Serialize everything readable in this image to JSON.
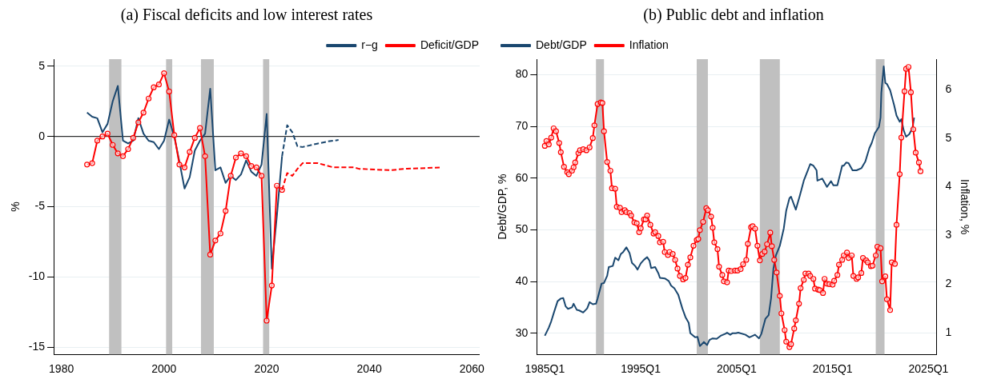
{
  "chart_data": [
    {
      "type": "line",
      "title": "(a) Fiscal deficits and low interest rates",
      "ylabel": "%",
      "xlim": [
        1978.5,
        2061.5
      ],
      "xticks": [
        1980,
        2000,
        2020,
        2040,
        2060
      ],
      "ylim": [
        -15.5,
        5.5
      ],
      "yticks": [
        -15,
        -10,
        -5,
        0,
        5
      ],
      "grid": "y",
      "legend": "top right",
      "ref_lines": [
        {
          "axis": "y",
          "value": 0,
          "color": "#000000"
        }
      ],
      "bands": [
        {
          "axis": "x",
          "from": 1989.3,
          "to": 1991.7,
          "color": "#c0c0c0"
        },
        {
          "axis": "x",
          "from": 2000.4,
          "to": 2001.6,
          "color": "#c0c0c0"
        },
        {
          "axis": "x",
          "from": 2007.2,
          "to": 2009.7,
          "color": "#c0c0c0"
        },
        {
          "axis": "x",
          "from": 2019.3,
          "to": 2020.5,
          "color": "#c0c0c0"
        }
      ],
      "series": [
        {
          "name": "r−g",
          "color": "#1a476f",
          "marker": "none",
          "x": [
            1985,
            1986,
            1987,
            1988,
            1989,
            1990,
            1991,
            1992,
            1993,
            1994,
            1995,
            1996,
            1997,
            1998,
            1999,
            2000,
            2001,
            2002,
            2003,
            2004,
            2005,
            2006,
            2007,
            2008,
            2009,
            2010,
            2011,
            2012,
            2013,
            2014,
            2015,
            2016,
            2017,
            2018,
            2019,
            2020,
            2021,
            2022,
            2023
          ],
          "values": [
            1.7,
            1.4,
            1.3,
            0.3,
            0.9,
            2.5,
            3.6,
            -0.3,
            -0.5,
            -0.3,
            1.3,
            0.2,
            -0.3,
            -0.4,
            -0.9,
            -0.3,
            1.2,
            0.0,
            -1.8,
            -3.7,
            -2.9,
            -1.0,
            -0.3,
            0.2,
            3.4,
            -2.4,
            -2.2,
            -3.3,
            -2.8,
            -3.1,
            -2.7,
            -1.7,
            -2.5,
            -2.8,
            -2.0,
            1.6,
            -9.4,
            -5.6,
            -1.4
          ]
        },
        {
          "name": "Deficit/GDP",
          "color": "#ff0000",
          "marker": "circle",
          "x": [
            1985,
            1986,
            1987,
            1988,
            1989,
            1990,
            1991,
            1992,
            1993,
            1994,
            1995,
            1996,
            1997,
            1998,
            1999,
            2000,
            2001,
            2002,
            2003,
            2004,
            2005,
            2006,
            2007,
            2008,
            2009,
            2010,
            2011,
            2012,
            2013,
            2014,
            2015,
            2016,
            2017,
            2018,
            2019,
            2020,
            2021,
            2022,
            2023
          ],
          "values": [
            -2.0,
            -1.9,
            -0.3,
            0.0,
            0.2,
            -0.6,
            -1.2,
            -1.4,
            -0.9,
            -0.1,
            1.0,
            1.7,
            2.7,
            3.5,
            3.7,
            4.5,
            3.2,
            0.1,
            -2.0,
            -2.2,
            -1.1,
            -0.1,
            0.6,
            -1.4,
            -8.4,
            -7.4,
            -6.9,
            -5.3,
            -2.8,
            -1.5,
            -1.2,
            -1.4,
            -2.1,
            -2.2,
            -2.8,
            -13.1,
            -10.6,
            -3.5,
            -3.8
          ]
        },
        {
          "color": "#1a476f",
          "marker": "none",
          "line_style": "dashed",
          "x": [
            2023,
            2024,
            2025,
            2026,
            2027,
            2030,
            2032,
            2034
          ],
          "values": [
            -1.4,
            0.8,
            0.3,
            -0.7,
            -0.75,
            -0.5,
            -0.35,
            -0.25
          ]
        },
        {
          "color": "#ff0000",
          "marker": "none",
          "line_style": "dashed",
          "x": [
            2023,
            2024,
            2025,
            2026,
            2027,
            2030,
            2033,
            2037,
            2038,
            2044,
            2047,
            2054
          ],
          "values": [
            -3.8,
            -2.6,
            -2.8,
            -2.3,
            -1.9,
            -1.9,
            -2.2,
            -2.2,
            -2.3,
            -2.4,
            -2.3,
            -2.2
          ]
        }
      ]
    },
    {
      "type": "line",
      "title": "(b) Public debt and inflation",
      "ylabel": "Debt/GDP, %",
      "y2label": "Inflation, %",
      "xlim": [
        "1984-03",
        "2025-11"
      ],
      "xticks": [
        {
          "value": "1985-01",
          "label": "1985Q1"
        },
        {
          "value": "1995-01",
          "label": "1995Q1"
        },
        {
          "value": "2005-01",
          "label": "2005Q1"
        },
        {
          "value": "2015-01",
          "label": "2015Q1"
        },
        {
          "value": "2025-01",
          "label": "2025Q1"
        }
      ],
      "ylim": [
        25.9,
        83
      ],
      "yticks": [
        30,
        40,
        50,
        60,
        70,
        80
      ],
      "y2lim": [
        0.56,
        6.62
      ],
      "y2ticks": [
        1,
        2,
        3,
        4,
        5,
        6
      ],
      "grid": "y",
      "legend": "top left",
      "bands": [
        {
          "axis": "x",
          "from": "1990-05",
          "to": "1991-03",
          "color": "#c0c0c0"
        },
        {
          "axis": "x",
          "from": "2000-11",
          "to": "2002-01",
          "color": "#c0c0c0"
        },
        {
          "axis": "x",
          "from": "2007-06",
          "to": "2009-07",
          "color": "#c0c0c0"
        },
        {
          "axis": "x",
          "from": "2019-07",
          "to": "2020-06",
          "color": "#c0c0c0"
        }
      ],
      "series": [
        {
          "name": "Debt/GDP",
          "color": "#1a476f",
          "marker": "none",
          "x": [
            "1985-01",
            "1985-06",
            "1985-09",
            "1986-01",
            "1986-05",
            "1986-09",
            "1986-12",
            "1987-03",
            "1987-06",
            "1987-11",
            "1988-01",
            "1988-05",
            "1988-08",
            "1989-01",
            "1989-06",
            "1989-09",
            "1990-01",
            "1990-05",
            "1990-07",
            "1990-12",
            "1991-03",
            "1991-07",
            "1991-09",
            "1992-02",
            "1992-05",
            "1992-09",
            "1992-12",
            "1993-03",
            "1993-07",
            "1993-11",
            "1994-02",
            "1994-06",
            "1994-09",
            "1995-01",
            "1995-05",
            "1995-09",
            "1995-12",
            "1996-02",
            "1996-07",
            "1996-11",
            "1997-01",
            "1997-07",
            "1997-12",
            "1998-03",
            "1998-07",
            "1998-12",
            "1999-05",
            "1999-09",
            "2000-01",
            "2000-03",
            "2000-09",
            "2000-12",
            "2001-03",
            "2001-08",
            "2001-12",
            "2002-03",
            "2002-07",
            "2002-12",
            "2003-05",
            "2003-11",
            "2004-01",
            "2004-05",
            "2004-08",
            "2004-12",
            "2005-03",
            "2005-12",
            "2006-05",
            "2006-12",
            "2007-05",
            "2007-08",
            "2008-01",
            "2008-05",
            "2008-08",
            "2008-11",
            "2009-02",
            "2009-07",
            "2009-12",
            "2010-03",
            "2010-07",
            "2010-09",
            "2011-03",
            "2011-08",
            "2012-01",
            "2012-06",
            "2012-09",
            "2013-01",
            "2013-05",
            "2013-06",
            "2013-12",
            "2014-06",
            "2014-11",
            "2015-02",
            "2015-07",
            "2016-01",
            "2016-03",
            "2016-06",
            "2016-09",
            "2017-02",
            "2017-07",
            "2018-01",
            "2018-06",
            "2018-11",
            "2019-02",
            "2019-06",
            "2019-11",
            "2020-01",
            "2020-02",
            "2020-05",
            "2020-07",
            "2020-09",
            "2021-01",
            "2021-06",
            "2021-09",
            "2022-01",
            "2022-03",
            "2022-06",
            "2022-09",
            "2023-01",
            "2023-05",
            "2023-07"
          ],
          "values": [
            29.5,
            31.1,
            32.3,
            34.3,
            36.2,
            36.7,
            36.8,
            35.2,
            34.7,
            35.0,
            35.7,
            34.5,
            34.4,
            34.0,
            34.8,
            36.0,
            35.6,
            35.7,
            36.7,
            39.6,
            39.7,
            41.1,
            42.8,
            43.0,
            44.6,
            44.1,
            45.3,
            45.7,
            46.6,
            45.5,
            43.6,
            43.0,
            42.3,
            43.5,
            44.2,
            44.7,
            44.0,
            42.6,
            42.8,
            41.6,
            40.7,
            40.6,
            40.1,
            39.2,
            38.7,
            37.4,
            34.8,
            33.1,
            32.0,
            30.0,
            29.2,
            29.3,
            27.5,
            28.3,
            27.7,
            28.7,
            29.0,
            28.9,
            29.5,
            29.9,
            30.1,
            29.7,
            30.0,
            30.0,
            30.1,
            29.7,
            29.2,
            29.7,
            29.0,
            29.9,
            32.8,
            33.5,
            36.7,
            42.5,
            45.0,
            46.9,
            50.3,
            53.7,
            56.1,
            56.4,
            53.9,
            56.6,
            59.5,
            61.5,
            62.7,
            62.4,
            61.5,
            59.5,
            59.9,
            58.3,
            59.4,
            58.6,
            58.6,
            62.4,
            62.4,
            63.0,
            62.9,
            61.5,
            61.5,
            61.9,
            63.2,
            65.8,
            66.8,
            68.7,
            69.9,
            71.7,
            76.5,
            81.6,
            78.4,
            78.2,
            77.0,
            74.1,
            72.1,
            70.9,
            71.4,
            69.2,
            68.0,
            68.5,
            69.7,
            71.7
          ]
        },
        {
          "name": "Inflation",
          "color": "#ff0000",
          "marker": "circle",
          "axis": "y2",
          "x": [
            "1985-01",
            "1985-03",
            "1985-06",
            "1985-09",
            "1985-12",
            "1986-03",
            "1986-07",
            "1986-09",
            "1987-01",
            "1987-05",
            "1987-07",
            "1987-11",
            "1988-01",
            "1988-03",
            "1988-07",
            "1988-09",
            "1989-01",
            "1989-05",
            "1989-09",
            "1990-01",
            "1990-03",
            "1990-07",
            "1990-11",
            "1991-01",
            "1991-03",
            "1991-07",
            "1991-11",
            "1992-01",
            "1992-05",
            "1992-07",
            "1992-11",
            "1993-01",
            "1993-05",
            "1993-07",
            "1993-11",
            "1994-01",
            "1994-05",
            "1994-08",
            "1994-11",
            "1995-01",
            "1995-05",
            "1995-07",
            "1995-09",
            "1996-01",
            "1996-05",
            "1996-07",
            "1996-11",
            "1997-01",
            "1997-05",
            "1997-07",
            "1997-11",
            "1998-01",
            "1998-05",
            "1998-08",
            "1998-11",
            "1999-02",
            "1999-06",
            "1999-09",
            "1999-12",
            "2000-03",
            "2000-07",
            "2000-11",
            "2001-01",
            "2001-03",
            "2001-07",
            "2001-11",
            "2002-01",
            "2002-05",
            "2002-07",
            "2002-09",
            "2003-01",
            "2003-03",
            "2003-07",
            "2003-09",
            "2004-01",
            "2004-03",
            "2004-06",
            "2004-11",
            "2005-02",
            "2005-06",
            "2005-09",
            "2006-01",
            "2006-03",
            "2006-07",
            "2006-09",
            "2006-12",
            "2007-03",
            "2007-06",
            "2007-09",
            "2007-12",
            "2008-03",
            "2008-07",
            "2008-09",
            "2008-12",
            "2009-03",
            "2009-07",
            "2009-09",
            "2010-01",
            "2010-03",
            "2010-07",
            "2010-09",
            "2011-01",
            "2011-03",
            "2011-07",
            "2011-09",
            "2012-01",
            "2012-03",
            "2012-07",
            "2012-09",
            "2013-01",
            "2013-03",
            "2013-07",
            "2013-09",
            "2014-01",
            "2014-03",
            "2014-06",
            "2014-09",
            "2015-01",
            "2015-03",
            "2015-07",
            "2015-09",
            "2016-01",
            "2016-03",
            "2016-07",
            "2016-09",
            "2017-01",
            "2017-03",
            "2017-07",
            "2017-09",
            "2018-01",
            "2018-03",
            "2018-07",
            "2018-09",
            "2019-01",
            "2019-03",
            "2019-07",
            "2019-09",
            "2020-01",
            "2020-03",
            "2020-07",
            "2020-09",
            "2021-01",
            "2021-03",
            "2021-07",
            "2021-09",
            "2022-01",
            "2022-03",
            "2022-07",
            "2022-09",
            "2022-12",
            "2023-03",
            "2023-06",
            "2023-09",
            "2024-01",
            "2024-03"
          ],
          "values": [
            4.84,
            4.94,
            4.87,
            5.01,
            5.2,
            5.14,
            4.9,
            4.71,
            4.41,
            4.3,
            4.26,
            4.33,
            4.4,
            4.5,
            4.69,
            4.75,
            4.77,
            4.75,
            4.81,
            5.0,
            5.26,
            5.7,
            5.73,
            5.72,
            5.14,
            4.51,
            4.33,
            3.97,
            3.96,
            3.59,
            3.57,
            3.48,
            3.52,
            3.48,
            3.46,
            3.41,
            3.27,
            3.25,
            3.07,
            3.15,
            3.33,
            3.33,
            3.41,
            3.22,
            3.04,
            3.07,
            2.99,
            2.86,
            2.87,
            2.66,
            2.6,
            2.66,
            2.62,
            2.5,
            2.32,
            2.17,
            2.1,
            2.13,
            2.4,
            2.55,
            2.79,
            2.91,
            2.93,
            3.11,
            3.28,
            3.56,
            3.52,
            3.39,
            3.16,
            2.86,
            2.72,
            2.36,
            2.19,
            2.06,
            2.04,
            2.28,
            2.27,
            2.28,
            2.28,
            2.31,
            2.41,
            2.5,
            2.83,
            3.17,
            3.19,
            3.14,
            2.79,
            2.49,
            2.62,
            2.67,
            2.82,
            3.06,
            2.78,
            2.5,
            2.24,
            1.76,
            1.4,
            1.06,
            0.82,
            0.71,
            0.77,
            1.09,
            1.26,
            1.6,
            1.92,
            2.09,
            2.22,
            2.22,
            2.17,
            2.11,
            1.91,
            1.89,
            1.88,
            1.82,
            2.11,
            2.01,
            2.0,
            1.99,
            2.07,
            2.19,
            2.4,
            2.5,
            2.59,
            2.65,
            2.54,
            2.59,
            2.17,
            2.11,
            2.14,
            2.23,
            2.54,
            2.49,
            2.45,
            2.37,
            2.38,
            2.59,
            2.77,
            2.74,
            2.06,
            2.16,
            1.69,
            1.47,
            2.45,
            2.42,
            3.22,
            4.26,
            5.01,
            5.96,
            6.42,
            6.46,
            5.94,
            5.18,
            4.7,
            4.5,
            4.32
          ]
        }
      ]
    }
  ]
}
